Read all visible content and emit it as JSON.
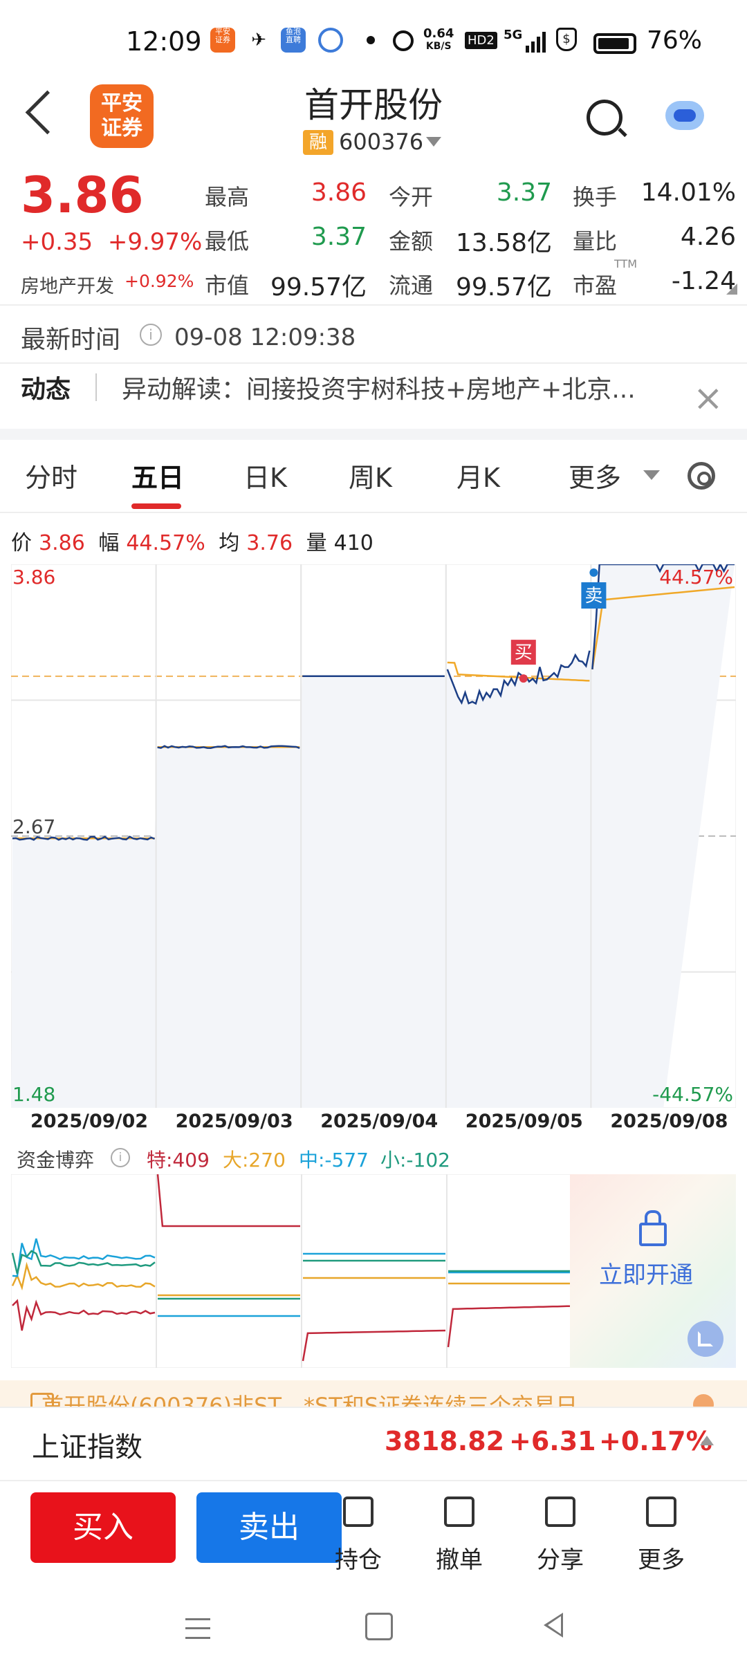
{
  "status_bar": {
    "time": "12:09",
    "net_speed": "0.64",
    "net_unit": "KB/S",
    "hd": "HD2",
    "signal": "5G",
    "battery": "76%",
    "app_icons": [
      "平安证券",
      "app-icon",
      "鱼泡直聘",
      "browser-icon"
    ]
  },
  "header": {
    "title": "首开股份",
    "badge": "融",
    "code": "600376",
    "logo_text": "平安\n证券"
  },
  "quote": {
    "price": "3.86",
    "change": "+0.35",
    "change_pct": "+9.97%",
    "sector": "房地产开发",
    "sector_pct": "+0.92%",
    "fields": [
      {
        "label": "最高",
        "value": "3.86",
        "color": "red"
      },
      {
        "label": "今开",
        "value": "3.37",
        "color": "green"
      },
      {
        "label": "换手",
        "value": "14.01%",
        "color": "dark"
      },
      {
        "label": "最低",
        "value": "3.37",
        "color": "green"
      },
      {
        "label": "金额",
        "value": "13.58亿",
        "color": "dark"
      },
      {
        "label": "量比",
        "value": "4.26",
        "color": "dark"
      },
      {
        "label": "市值",
        "value": "99.57亿",
        "color": "dark"
      },
      {
        "label": "流通",
        "value": "99.57亿",
        "color": "dark"
      },
      {
        "label": "市盈",
        "value": "-1.24",
        "color": "dark"
      }
    ],
    "ttm": "TTM"
  },
  "latest_time": {
    "label": "最新时间",
    "value": "09-08 12:09:38"
  },
  "news": {
    "label": "动态",
    "text": "异动解读：间接投资宇树科技+房地产+北京..."
  },
  "tabs": [
    "分时",
    "五日",
    "日K",
    "周K",
    "月K",
    "更多"
  ],
  "active_tab": "五日",
  "legend": {
    "price_label": "价",
    "price": "3.86",
    "amp_label": "幅",
    "amp": "44.57%",
    "avg_label": "均",
    "avg": "3.76",
    "vol_label": "量",
    "vol": "410"
  },
  "chart_data": {
    "type": "line",
    "x": [
      "2025/09/02",
      "2025/09/03",
      "2025/09/04",
      "2025/09/05",
      "2025/09/08"
    ],
    "ylim": [
      1.48,
      3.86
    ],
    "y_ticks_left": [
      "3.86",
      "2.67",
      "1.48"
    ],
    "y_ticks_right": [
      "44.57%",
      "-44.57%"
    ],
    "reference": 2.67,
    "avg_reference": 3.37,
    "series": [
      {
        "values": [
          2.66,
          3.06,
          3.37,
          3.33,
          3.86
        ]
      },
      {
        "values": [
          2.66,
          3.06,
          3.37,
          3.36,
          3.76
        ]
      }
    ],
    "markers": [
      {
        "label": "买",
        "day": "2025/09/05"
      },
      {
        "label": "卖",
        "day": "2025/09/08"
      }
    ],
    "grid": true
  },
  "capital_flow": {
    "title": "资金博弈",
    "items": [
      {
        "label": "特:409",
        "color": "#c0283b"
      },
      {
        "label": "大:270",
        "color": "#e7a62a"
      },
      {
        "label": "中:-577",
        "color": "#1aa2d9"
      },
      {
        "label": "小:-102",
        "color": "#1f9a7e"
      }
    ],
    "unlock_text": "立即开通"
  },
  "ticker": {
    "text": "首开股份(600376)非ST、*ST和S证券连续三个交易日"
  },
  "index_bar": {
    "name": "上证指数",
    "value": "3818.82",
    "change": "+6.31",
    "pct": "+0.17%"
  },
  "actions": {
    "buy": "买入",
    "sell": "卖出",
    "items": [
      "持仓",
      "撤单",
      "分享",
      "更多"
    ]
  }
}
